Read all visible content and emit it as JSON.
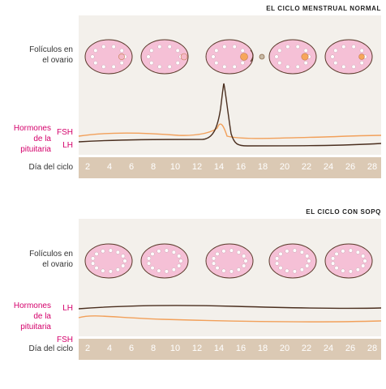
{
  "normal": {
    "title": "EL CICLO MENSTRUAL NORMAL",
    "follicles_label": [
      "Folículos en",
      "el ovario"
    ],
    "hormones_label": [
      "Hormones",
      "de la",
      "pituitaria"
    ],
    "fsh_label": "FSH",
    "lh_label": "LH",
    "axis_title": "Día del ciclo"
  },
  "pcos": {
    "title": "EL CICLO CON SOPQ",
    "follicles_label": [
      "Folículos en",
      "el ovario"
    ],
    "hormones_label": [
      "Hormones",
      "de la",
      "pituitaria"
    ],
    "lh_label": "LH",
    "fsh_label": "FSH",
    "axis_title": "Día del ciclo"
  },
  "days": [
    "2",
    "4",
    "6",
    "8",
    "10",
    "12",
    "14",
    "16",
    "18",
    "20",
    "22",
    "24",
    "26",
    "28"
  ],
  "colors": {
    "ovary_fill": "#f5c0d6",
    "ovary_stroke": "#5a3a2a",
    "lh_line": "#4a2e1e",
    "fsh_line": "#f2a05a",
    "band": "#dbc9b4",
    "chart_bg": "#f3f0eb",
    "label_pink": "#d4006b"
  }
}
